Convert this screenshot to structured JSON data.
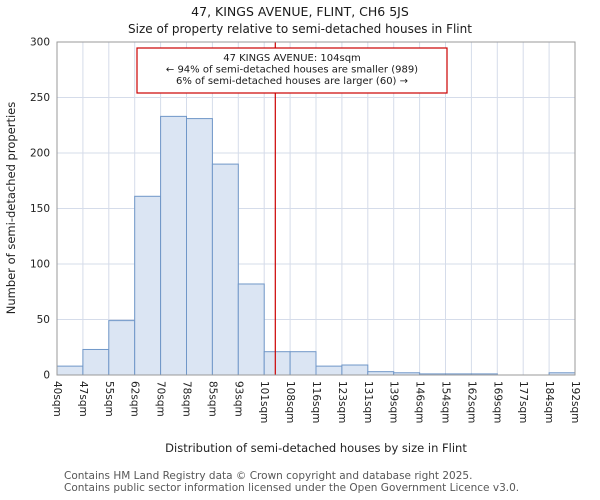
{
  "title": "47, KINGS AVENUE, FLINT, CH6 5JS",
  "subtitle": "Size of property relative to semi-detached houses in Flint",
  "chart_data": {
    "type": "bar",
    "title": "47, KINGS AVENUE, FLINT, CH6 5JS",
    "subtitle": "Size of property relative to semi-detached houses in Flint",
    "xlabel": "Distribution of semi-detached houses by size in Flint",
    "ylabel": "Number of semi-detached properties",
    "ylim": [
      0,
      300
    ],
    "yticks": [
      0,
      50,
      100,
      150,
      200,
      250,
      300
    ],
    "grid": true,
    "legend": false,
    "bin_edges": [
      40,
      47,
      55,
      62,
      70,
      78,
      85,
      93,
      101,
      108,
      116,
      123,
      131,
      139,
      146,
      154,
      162,
      169,
      177,
      184,
      192
    ],
    "bin_labels": [
      "40sqm",
      "47sqm",
      "55sqm",
      "62sqm",
      "70sqm",
      "78sqm",
      "85sqm",
      "93sqm",
      "101sqm",
      "108sqm",
      "116sqm",
      "123sqm",
      "131sqm",
      "139sqm",
      "146sqm",
      "154sqm",
      "162sqm",
      "169sqm",
      "177sqm",
      "184sqm",
      "192sqm"
    ],
    "values": [
      8,
      23,
      49,
      161,
      233,
      231,
      190,
      82,
      21,
      21,
      8,
      9,
      3,
      2,
      1,
      1,
      1,
      0,
      0,
      2
    ],
    "marker": {
      "value_sqm": 104,
      "line_color": "#cc0000",
      "annotation_lines": [
        "47 KINGS AVENUE: 104sqm",
        "← 94% of semi-detached houses are smaller (989)",
        "6% of semi-detached houses are larger (60) →"
      ]
    },
    "colors": {
      "bar_fill": "#dbe5f3",
      "bar_stroke": "#7097c8",
      "grid": "#d5dcea",
      "frame": "#999999"
    }
  },
  "footer": {
    "line1": "Contains HM Land Registry data © Crown copyright and database right 2025.",
    "line2": "Contains public sector information licensed under the Open Government Licence v3.0."
  }
}
